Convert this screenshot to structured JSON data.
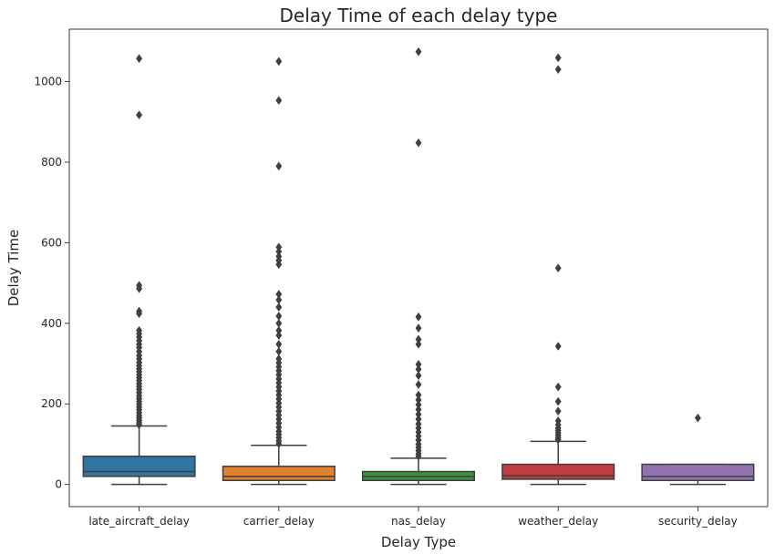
{
  "chart_data": {
    "type": "box",
    "title": "Delay Time of each delay type",
    "xlabel": "Delay Type",
    "ylabel": "Delay Time",
    "ylim": [
      -55,
      1130
    ],
    "yticks": [
      0,
      200,
      400,
      600,
      800,
      1000
    ],
    "grid": false,
    "categories": [
      "late_aircraft_delay",
      "carrier_delay",
      "nas_delay",
      "weather_delay",
      "security_delay"
    ],
    "colors": [
      "#3274a1",
      "#e1812c",
      "#3a923a",
      "#c03d3e",
      "#9372b2"
    ],
    "series": [
      {
        "q1": 20,
        "median": 32,
        "q3": 70,
        "whisker_low": 0,
        "whisker_high": 145,
        "outliers": [
          1057,
          917,
          494,
          486,
          430,
          424,
          382,
          374,
          366,
          357,
          348,
          340,
          330,
          320,
          312,
          303,
          295,
          287,
          280,
          272,
          265,
          258,
          250,
          243,
          236,
          228,
          220,
          213,
          206,
          199,
          192,
          185,
          178,
          171,
          165,
          159,
          153,
          148
        ]
      },
      {
        "q1": 10,
        "median": 20,
        "q3": 45,
        "whisker_low": 0,
        "whisker_high": 97,
        "outliers": [
          1050,
          953,
          790,
          589,
          578,
          566,
          556,
          546,
          472,
          458,
          440,
          418,
          400,
          382,
          370,
          348,
          330,
          312,
          302,
          292,
          282,
          272,
          262,
          252,
          242,
          232,
          222,
          212,
          202,
          192,
          182,
          172,
          162,
          152,
          142,
          132,
          124,
          116,
          108,
          101
        ]
      },
      {
        "q1": 10,
        "median": 20,
        "q3": 32,
        "whisker_low": 0,
        "whisker_high": 65,
        "outliers": [
          1074,
          848,
          416,
          388,
          360,
          348,
          298,
          286,
          270,
          248,
          222,
          210,
          198,
          186,
          174,
          162,
          150,
          140,
          130,
          120,
          110,
          100,
          92,
          84,
          76,
          70
        ]
      },
      {
        "q1": 13,
        "median": 22,
        "q3": 50,
        "whisker_low": 0,
        "whisker_high": 107,
        "outliers": [
          1059,
          1030,
          537,
          343,
          242,
          206,
          182,
          158,
          148,
          140,
          134,
          128,
          122,
          116,
          111
        ]
      },
      {
        "q1": 10,
        "median": 20,
        "q3": 50,
        "whisker_low": 0,
        "whisker_high": 50,
        "outliers": [
          165
        ]
      }
    ]
  }
}
